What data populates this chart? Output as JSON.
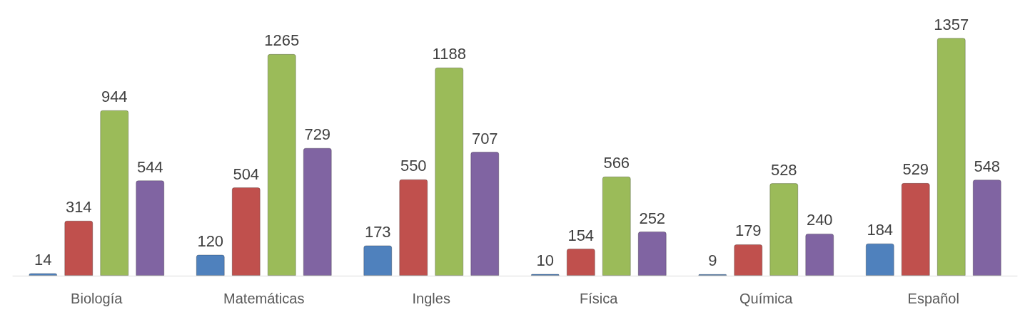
{
  "chart_data": {
    "type": "bar",
    "categories": [
      "Biología",
      "Matemáticas",
      "Ingles",
      "Física",
      "Química",
      "Español"
    ],
    "series": [
      {
        "color": "#4f81bd",
        "values": [
          14,
          120,
          173,
          10,
          9,
          184
        ]
      },
      {
        "color": "#c0504d",
        "values": [
          314,
          504,
          550,
          154,
          179,
          529
        ]
      },
      {
        "color": "#9bbb59",
        "values": [
          944,
          1265,
          1188,
          566,
          528,
          1357
        ]
      },
      {
        "color": "#8064a2",
        "values": [
          544,
          729,
          707,
          252,
          240,
          548
        ]
      }
    ],
    "data_labels": true,
    "grid": false
  }
}
